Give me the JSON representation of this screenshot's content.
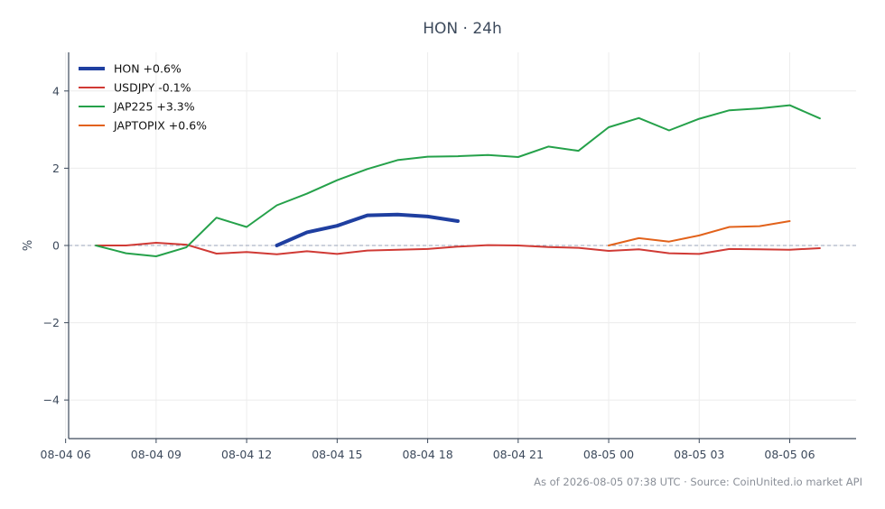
{
  "chart_data": {
    "type": "line",
    "title": "HON · 24h",
    "xlabel": "",
    "ylabel": "%",
    "x_tick_labels": [
      "08-04 06",
      "08-04 09",
      "08-04 12",
      "08-04 15",
      "08-04 18",
      "08-04 21",
      "08-05 00",
      "08-05 03",
      "08-05 06"
    ],
    "x_tick_hours": [
      6,
      9,
      12,
      15,
      18,
      21,
      24,
      27,
      30
    ],
    "y_ticks": [
      -4,
      -2,
      0,
      2,
      4
    ],
    "y_tick_labels": [
      "−4",
      "−2",
      "0",
      "2",
      "4"
    ],
    "xlim_hours": [
      6.1,
      32.2
    ],
    "ylim": [
      -5,
      5
    ],
    "x_unit": "hours since 08-04 00:00 UTC",
    "grid": true,
    "zero_reference_line": true,
    "legend_placement": "top-left",
    "series": [
      {
        "name": "HON +0.6%",
        "color": "#1f3fa0",
        "emphasis": true,
        "x": [
          13,
          14,
          15,
          16,
          17,
          18,
          19
        ],
        "y": [
          0.0,
          0.34,
          0.51,
          0.78,
          0.8,
          0.75,
          0.63
        ]
      },
      {
        "name": "USDJPY -0.1%",
        "color": "#d03a35",
        "x": [
          7,
          8,
          9,
          10,
          11,
          12,
          13,
          14,
          15,
          16,
          17,
          18,
          19,
          20,
          21,
          22,
          23,
          24,
          25,
          26,
          27,
          28,
          29,
          30,
          31
        ],
        "y": [
          0.0,
          0.0,
          0.07,
          0.02,
          -0.21,
          -0.17,
          -0.23,
          -0.15,
          -0.22,
          -0.13,
          -0.11,
          -0.09,
          -0.03,
          0.01,
          0.0,
          -0.04,
          -0.06,
          -0.14,
          -0.1,
          -0.2,
          -0.22,
          -0.09,
          -0.1,
          -0.11,
          -0.07
        ]
      },
      {
        "name": "JAP225 +3.3%",
        "color": "#25a14a",
        "x": [
          7,
          8,
          9,
          10,
          11,
          12,
          13,
          14,
          15,
          16,
          17,
          18,
          19,
          20,
          21,
          22,
          23,
          24,
          25,
          26,
          27,
          28,
          29,
          30,
          31
        ],
        "y": [
          0.0,
          -0.2,
          -0.28,
          -0.05,
          0.72,
          0.48,
          1.04,
          1.34,
          1.69,
          1.98,
          2.21,
          2.3,
          2.31,
          2.34,
          2.29,
          2.56,
          2.45,
          3.06,
          3.3,
          2.98,
          3.28,
          3.5,
          3.55,
          3.63,
          3.29
        ]
      },
      {
        "name": "JAPTOPIX +0.6%",
        "color": "#e2621b",
        "x": [
          24,
          25,
          26,
          27,
          28,
          29,
          30
        ],
        "y": [
          0.0,
          0.19,
          0.1,
          0.26,
          0.48,
          0.5,
          0.63
        ]
      }
    ],
    "footer": "As of 2026-08-05 07:38 UTC · Source: CoinUnited.io market API"
  }
}
